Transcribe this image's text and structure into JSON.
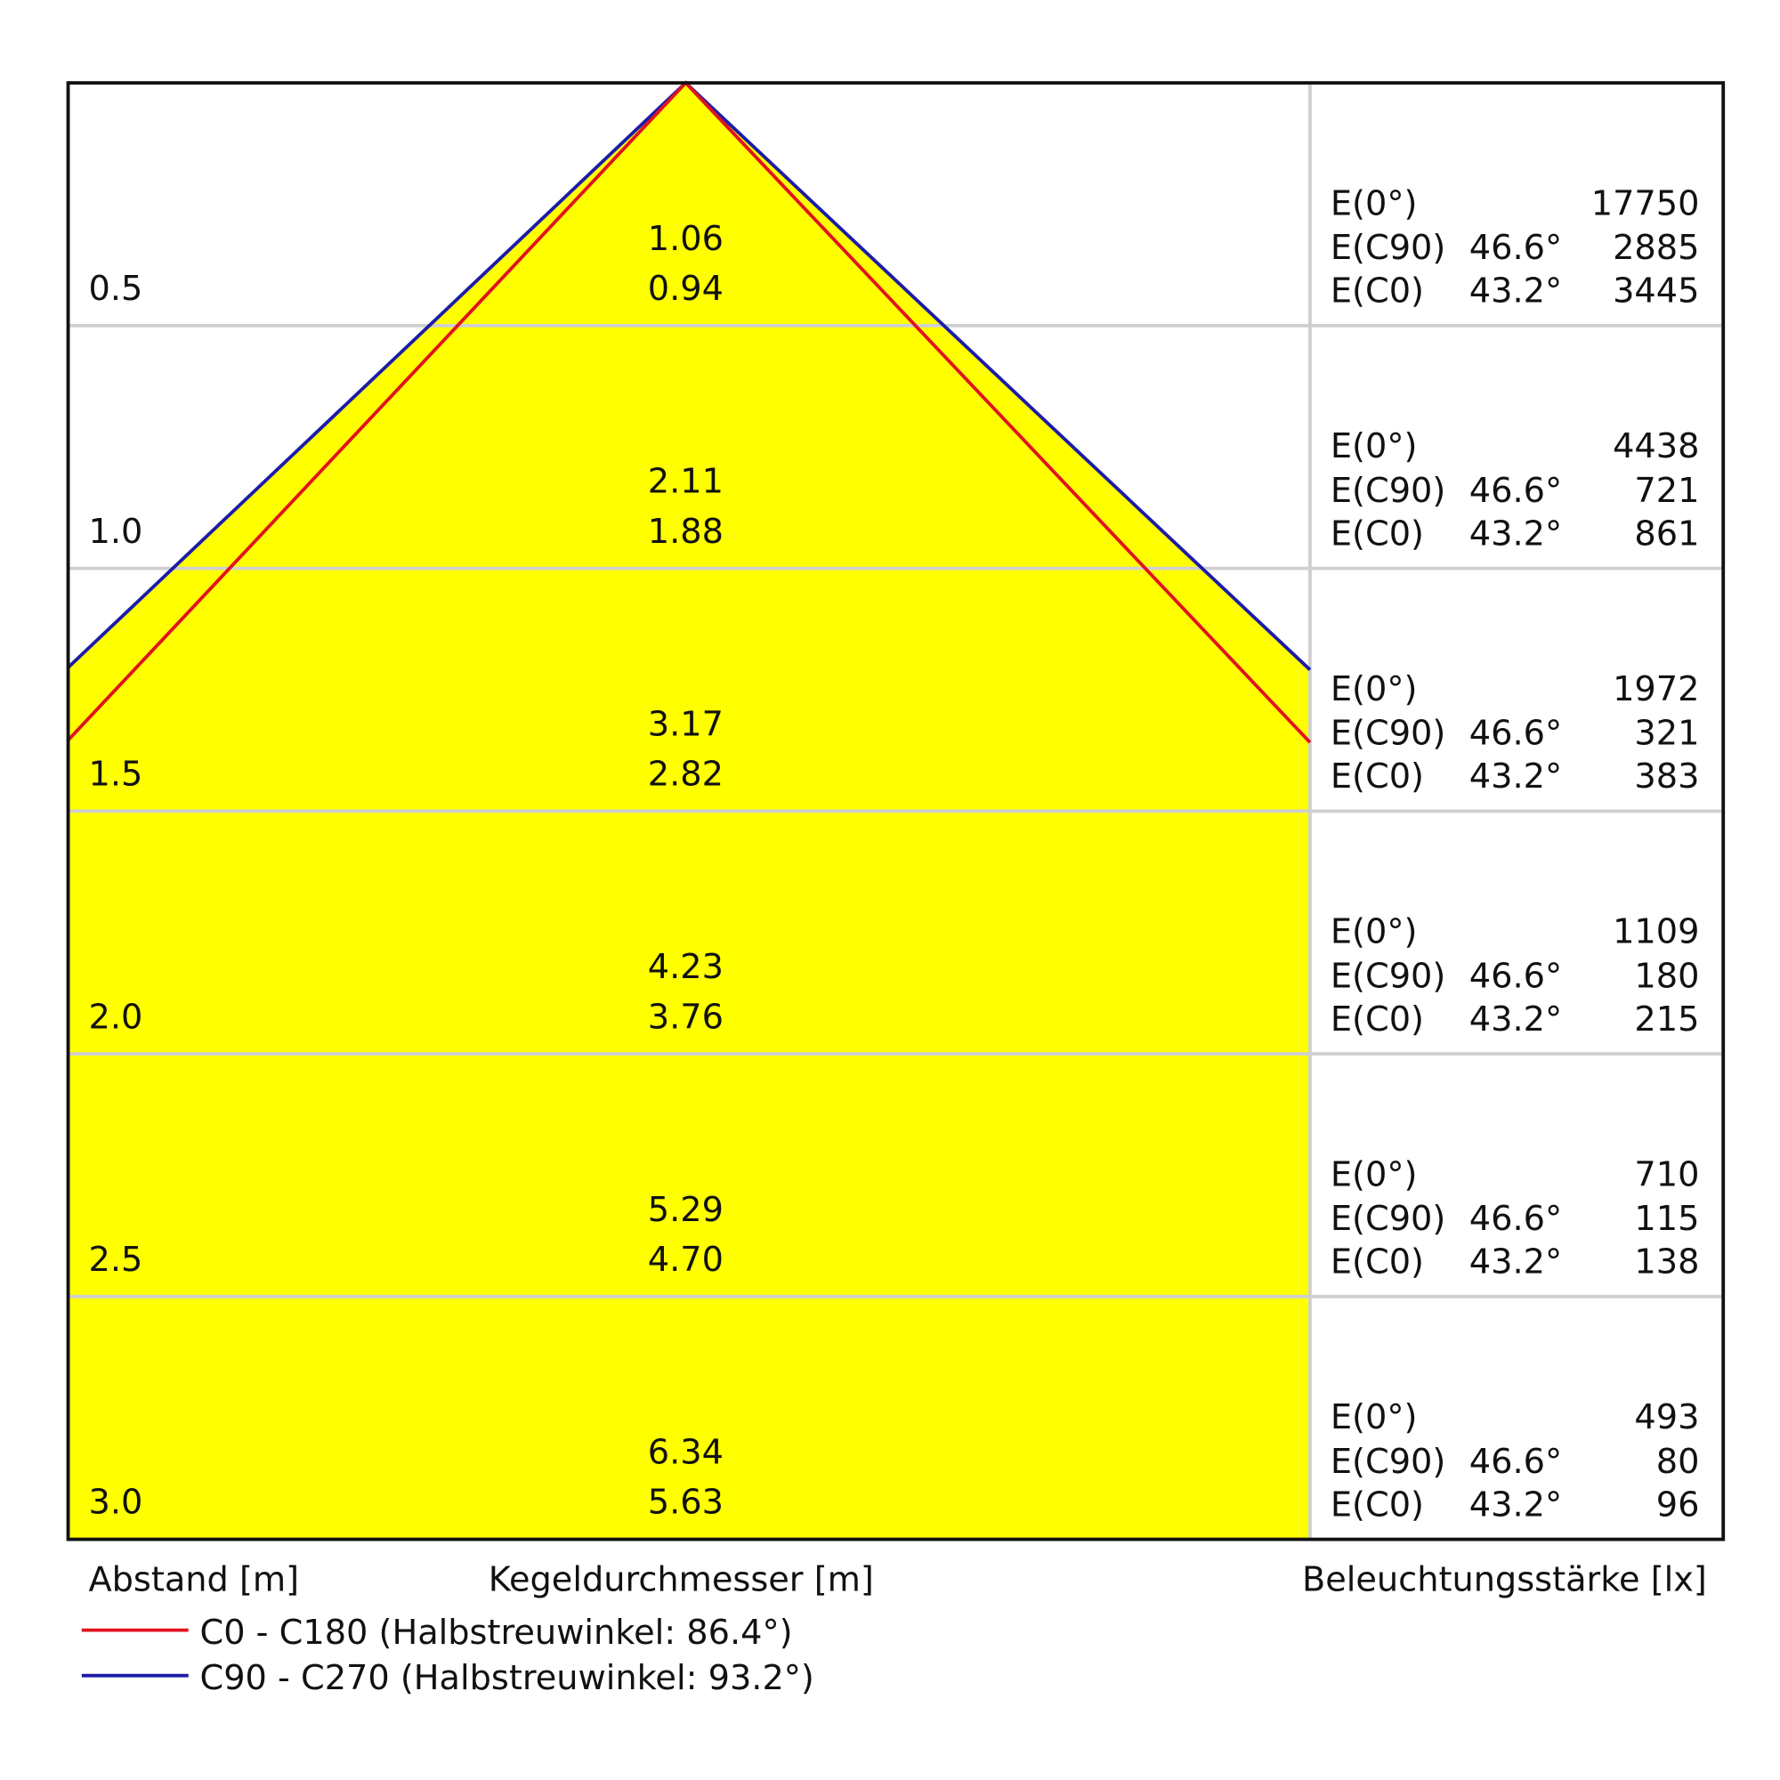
{
  "rows": [
    {
      "distance": "0.5",
      "diameter_c90": "1.06",
      "diameter_c0": "0.94",
      "e0_label": "E(0°)",
      "e0": "17750",
      "ec90_label": "E(C90)",
      "ec90_angle": "46.6°",
      "ec90": "2885",
      "ec0_label": "E(C0)",
      "ec0_angle": "43.2°",
      "ec0": "3445"
    },
    {
      "distance": "1.0",
      "diameter_c90": "2.11",
      "diameter_c0": "1.88",
      "e0_label": "E(0°)",
      "e0": "4438",
      "ec90_label": "E(C90)",
      "ec90_angle": "46.6°",
      "ec90": "721",
      "ec0_label": "E(C0)",
      "ec0_angle": "43.2°",
      "ec0": "861"
    },
    {
      "distance": "1.5",
      "diameter_c90": "3.17",
      "diameter_c0": "2.82",
      "e0_label": "E(0°)",
      "e0": "1972",
      "ec90_label": "E(C90)",
      "ec90_angle": "46.6°",
      "ec90": "321",
      "ec0_label": "E(C0)",
      "ec0_angle": "43.2°",
      "ec0": "383"
    },
    {
      "distance": "2.0",
      "diameter_c90": "4.23",
      "diameter_c0": "3.76",
      "e0_label": "E(0°)",
      "e0": "1109",
      "ec90_label": "E(C90)",
      "ec90_angle": "46.6°",
      "ec90": "180",
      "ec0_label": "E(C0)",
      "ec0_angle": "43.2°",
      "ec0": "215"
    },
    {
      "distance": "2.5",
      "diameter_c90": "5.29",
      "diameter_c0": "4.70",
      "e0_label": "E(0°)",
      "e0": "710",
      "ec90_label": "E(C90)",
      "ec90_angle": "46.6°",
      "ec90": "115",
      "ec0_label": "E(C0)",
      "ec0_angle": "43.2°",
      "ec0": "138"
    },
    {
      "distance": "3.0",
      "diameter_c90": "6.34",
      "diameter_c0": "5.63",
      "e0_label": "E(0°)",
      "e0": "493",
      "ec90_label": "E(C90)",
      "ec90_angle": "46.6°",
      "ec90": "80",
      "ec0_label": "E(C0)",
      "ec0_angle": "43.2°",
      "ec0": "96"
    }
  ],
  "axis_labels": {
    "distance": "Abstand [m]",
    "diameter": "Kegeldurchmesser [m]",
    "illuminance": "Beleuchtungsstärke [lx]"
  },
  "legend": [
    "C0 - C180 (Halbstreuwinkel: 86.4°)",
    "C90 - C270 (Halbstreuwinkel: 93.2°)"
  ]
}
